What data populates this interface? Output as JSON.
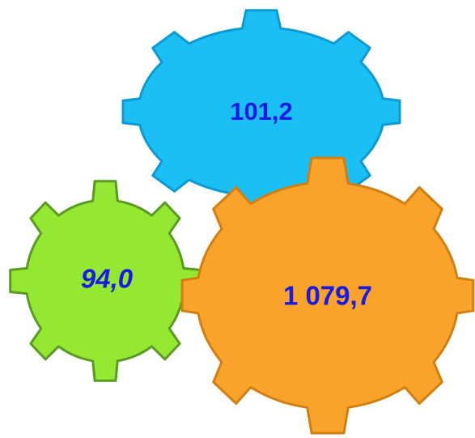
{
  "gears": [
    {
      "label": "101,2"
    },
    {
      "label": "94,0"
    },
    {
      "label": "1 079,7"
    }
  ]
}
